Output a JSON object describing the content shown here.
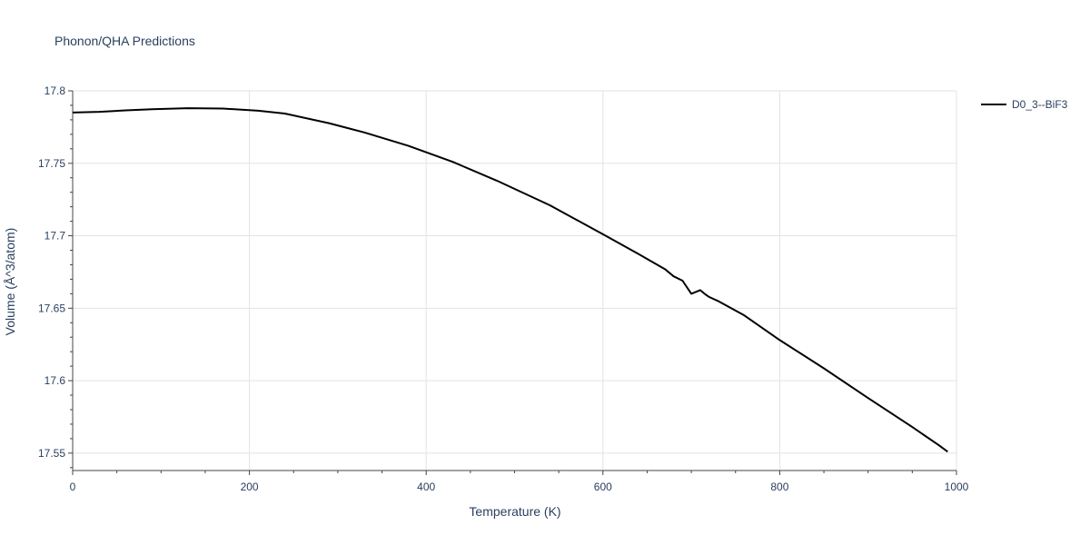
{
  "chart_data": {
    "type": "line",
    "title": "Phonon/QHA Predictions",
    "xlabel": "Temperature (K)",
    "ylabel": "Volume (Å^3/atom)",
    "xlim": [
      0,
      1000
    ],
    "ylim": [
      17.538,
      17.8
    ],
    "x_ticks": [
      0,
      200,
      400,
      600,
      800,
      1000
    ],
    "x_tick_labels": [
      "0",
      "200",
      "400",
      "600",
      "800",
      "1000"
    ],
    "y_ticks": [
      17.55,
      17.6,
      17.65,
      17.7,
      17.75,
      17.8
    ],
    "y_tick_labels": [
      "17.55",
      "17.6",
      "17.65",
      "17.7",
      "17.75",
      "17.8"
    ],
    "grid": true,
    "legend_position": "top-right",
    "series": [
      {
        "name": "D0_3--BiF3",
        "color": "#000000",
        "x": [
          0,
          30,
          60,
          90,
          130,
          170,
          210,
          240,
          290,
          330,
          380,
          430,
          480,
          540,
          600,
          640,
          670,
          680,
          690,
          700,
          710,
          715,
          720,
          730,
          760,
          800,
          850,
          900,
          950,
          980,
          990
        ],
        "y": [
          17.785,
          17.7855,
          17.7865,
          17.7873,
          17.788,
          17.7878,
          17.7863,
          17.7843,
          17.7777,
          17.7713,
          17.762,
          17.751,
          17.738,
          17.721,
          17.701,
          17.6875,
          17.677,
          17.672,
          17.669,
          17.66,
          17.6625,
          17.66,
          17.6578,
          17.655,
          17.645,
          17.628,
          17.6085,
          17.588,
          17.568,
          17.5555,
          17.551
        ]
      }
    ]
  }
}
